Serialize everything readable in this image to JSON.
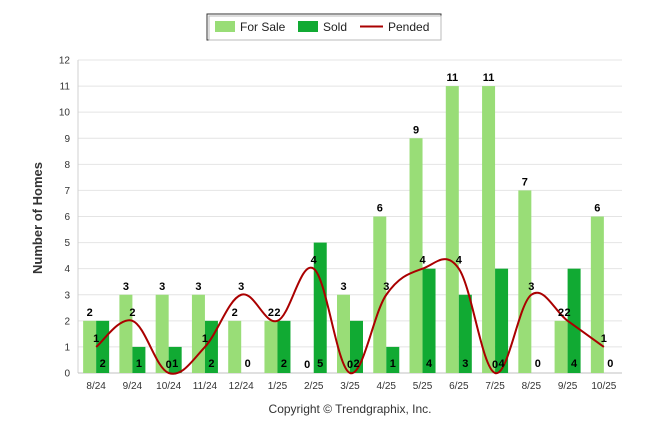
{
  "chart_data": {
    "type": "bar",
    "categories": [
      "8/24",
      "9/24",
      "10/24",
      "11/24",
      "12/24",
      "1/25",
      "2/25",
      "3/25",
      "4/25",
      "5/25",
      "6/25",
      "7/25",
      "8/25",
      "9/25",
      "10/25"
    ],
    "series": [
      {
        "name": "For Sale",
        "type": "bar",
        "color": "#99dd77",
        "values": [
          2,
          3,
          3,
          3,
          2,
          2,
          0,
          3,
          6,
          9,
          11,
          11,
          7,
          2,
          6
        ]
      },
      {
        "name": "Sold",
        "type": "bar",
        "color": "#11aa33",
        "values": [
          2,
          1,
          1,
          2,
          0,
          2,
          5,
          2,
          1,
          4,
          3,
          4,
          0,
          4,
          0
        ]
      },
      {
        "name": "Pended",
        "type": "line",
        "color": "#aa0000",
        "values": [
          1,
          2,
          0,
          1,
          3,
          2,
          4,
          0,
          3,
          4,
          4,
          0,
          3,
          2,
          1
        ]
      }
    ],
    "ylabel": "Number of Homes",
    "xlabel": "",
    "ylim": [
      0,
      12
    ],
    "yticks": [
      "0",
      "1",
      "2",
      "3",
      "4",
      "5",
      "6",
      "7",
      "8",
      "9",
      "10",
      "11",
      "12"
    ],
    "grid": true,
    "legend_position": "top-center",
    "footer": "Copyright © Trendgraphix, Inc."
  }
}
